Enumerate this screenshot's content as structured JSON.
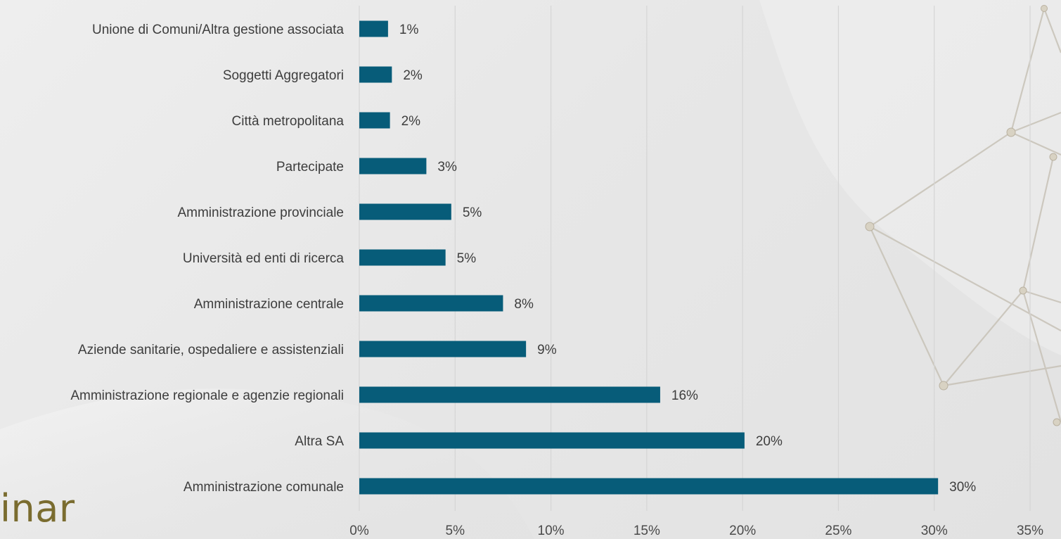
{
  "slide": {
    "footer_fragment": "inar"
  },
  "chart_data": {
    "type": "bar",
    "orientation": "horizontal",
    "categories": [
      "Unione di Comuni/Altra gestione associata",
      "Soggetti Aggregatori",
      "Città metropolitana",
      "Partecipate",
      "Amministrazione provinciale",
      "Università ed enti di ricerca",
      "Amministrazione centrale",
      "Aziende sanitarie, ospedaliere e assistenziali",
      "Amministrazione regionale e agenzie regionali",
      "Altra SA",
      "Amministrazione comunale"
    ],
    "values": [
      1.5,
      1.7,
      1.6,
      3.5,
      4.8,
      4.5,
      7.5,
      8.7,
      15.7,
      20.1,
      30.2
    ],
    "value_labels": [
      "1%",
      "2%",
      "2%",
      "3%",
      "5%",
      "5%",
      "8%",
      "9%",
      "16%",
      "20%",
      "30%"
    ],
    "x_ticks": [
      "0%",
      "5%",
      "10%",
      "15%",
      "20%",
      "25%",
      "30%",
      "35%"
    ],
    "xlim": [
      0,
      35
    ],
    "grid": true,
    "bar_color": "#075c79"
  }
}
